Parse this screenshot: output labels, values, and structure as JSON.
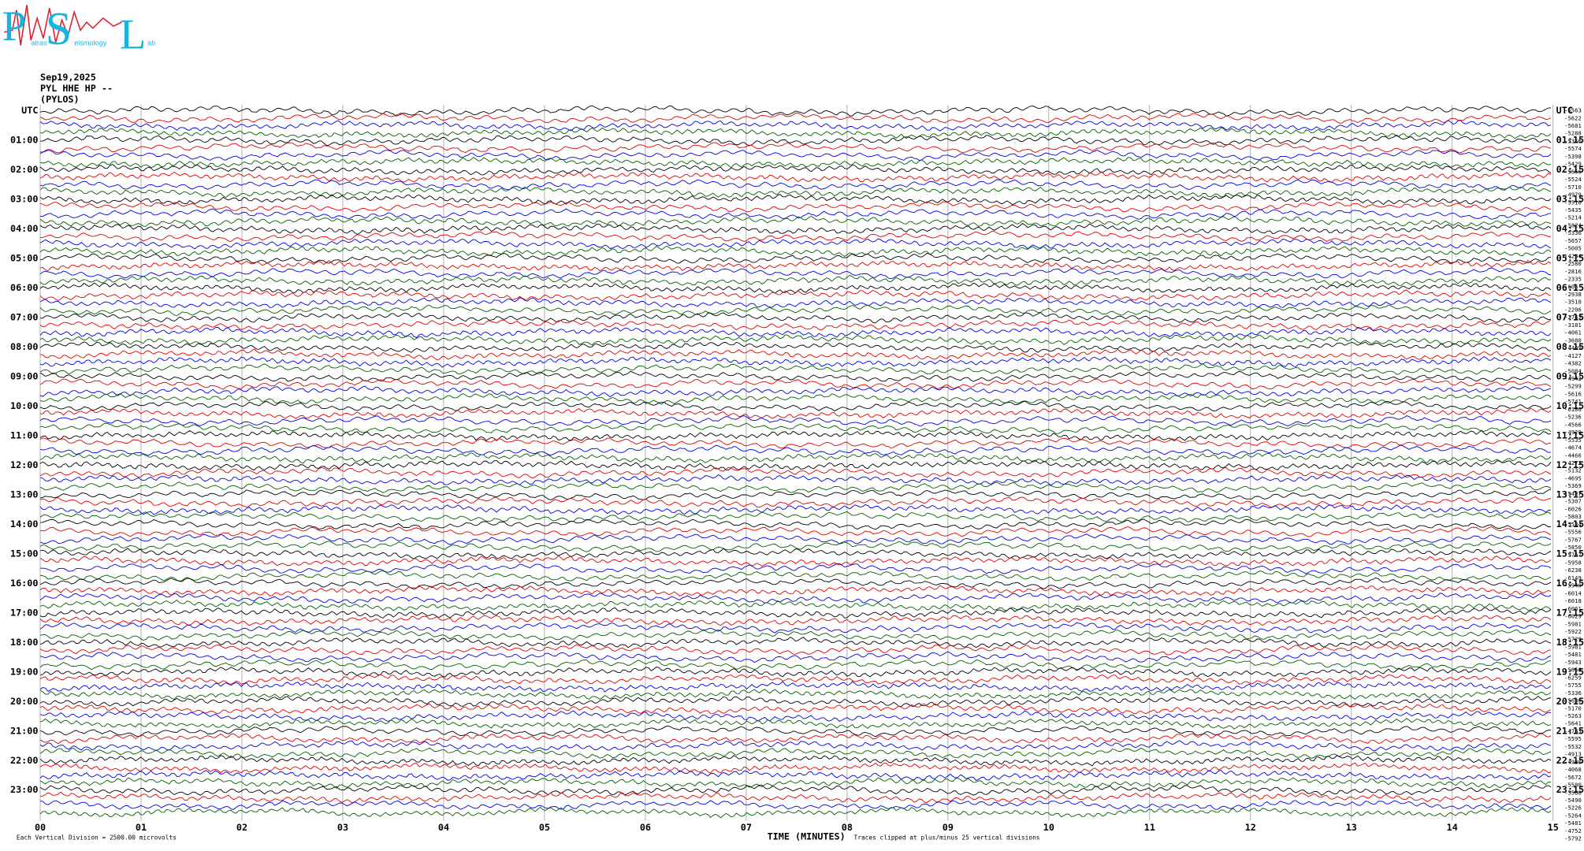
{
  "logo": {
    "p": "P",
    "s": "S",
    "l": "L",
    "sub1": "atras",
    "sub2": "eismology",
    "sub3": "ab"
  },
  "header": {
    "date": "Sep19,2025",
    "station": "PYL HHE HP --",
    "site": "(PYLOS)"
  },
  "left_labels": [
    "UTC",
    "01:00",
    "02:00",
    "03:00",
    "04:00",
    "05:00",
    "06:00",
    "07:00",
    "08:00",
    "09:00",
    "10:00",
    "11:00",
    "12:00",
    "13:00",
    "14:00",
    "15:00",
    "16:00",
    "17:00",
    "18:00",
    "19:00",
    "20:00",
    "21:00",
    "22:00",
    "23:00"
  ],
  "right_labels": [
    "UTC",
    "01:15",
    "02:15",
    "03:15",
    "04:15",
    "05:15",
    "06:15",
    "07:15",
    "08:15",
    "09:15",
    "10:15",
    "11:15",
    "12:15",
    "13:15",
    "14:15",
    "15:15",
    "16:15",
    "17:15",
    "18:15",
    "19:15",
    "20:15",
    "21:15",
    "22:15",
    "23:15"
  ],
  "minutes": [
    "00",
    "01",
    "02",
    "03",
    "04",
    "05",
    "06",
    "07",
    "08",
    "09",
    "10",
    "11",
    "12",
    "13",
    "14",
    "15"
  ],
  "counts": [
    -5563,
    -5622,
    -5681,
    -5288,
    -5356,
    -5574,
    -5398,
    -5429,
    -5656,
    -5524,
    -5710,
    -4979,
    -5510,
    -5435,
    -5214,
    -5824,
    -5336,
    -5657,
    -5005,
    -4234,
    -2580,
    -2816,
    -2335,
    -606,
    -2938,
    -3510,
    -2206,
    -2743,
    -3181,
    -4061,
    -3680,
    -4409,
    -4127,
    -4382,
    -5084,
    -4942,
    -5299,
    -5616,
    -5741,
    -6186,
    -5236,
    -4566,
    -4920,
    -5535,
    -4674,
    -4466,
    -4272,
    -5132,
    -4695,
    -5369,
    -5437,
    -5307,
    -6026,
    -5803,
    -5534,
    -5556,
    -5767,
    -5850,
    -5767,
    -5958,
    -6238,
    -6149,
    -5940,
    -6014,
    -6018,
    -6061,
    -6029,
    -5981,
    -5922,
    -5729,
    -5981,
    -5481,
    -5943,
    -5656,
    -6259,
    -5755,
    -5336,
    -5636,
    -5170,
    -5263,
    -5641,
    -4783,
    -5595,
    -5532,
    -4913,
    -4930,
    -4068,
    -5672,
    -5580,
    -5588,
    -5490,
    -5226,
    -5264,
    -5481,
    -4752,
    -5792
  ],
  "footer": {
    "scale": "Each Vertical Division = 2500.00 microvolts",
    "axis": "TIME (MINUTES)",
    "clip": "Traces clipped at plus/minus 25 vertical divisions"
  }
}
